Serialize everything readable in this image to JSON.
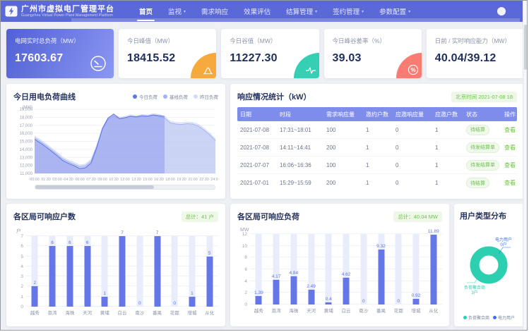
{
  "app": {
    "title": "广州市虚拟电厂管理平台",
    "subtitle": "Guangzhou Virtual Power Plant Management Platform"
  },
  "nav": {
    "items": [
      {
        "label": "首页",
        "active": true,
        "caret": false
      },
      {
        "label": "监视",
        "active": false,
        "caret": true
      },
      {
        "label": "需求响应",
        "active": false,
        "caret": false
      },
      {
        "label": "效果评估",
        "active": false,
        "caret": false
      },
      {
        "label": "结算管理",
        "active": false,
        "caret": true
      },
      {
        "label": "签约管理",
        "active": false,
        "caret": true
      },
      {
        "label": "参数配置",
        "active": false,
        "caret": true
      }
    ]
  },
  "kpis": [
    {
      "label": "电网实时总负荷（MW）",
      "value": "17603.67",
      "icon": "gauge-icon",
      "accent": "#5b69d8"
    },
    {
      "label": "今日峰值（MW）",
      "value": "18415.52",
      "icon": "peak-curve-icon",
      "accent": "#f7a93b"
    },
    {
      "label": "今日谷值（MW）",
      "value": "11227.30",
      "icon": "pulse-icon",
      "accent": "#35cfb4"
    },
    {
      "label": "今日峰谷差率（%）",
      "value": "39.03",
      "icon": "percent-icon",
      "accent": "#f87c72"
    },
    {
      "label": "日前 / 实时响应能力（MW）",
      "value": "40.04/39.12",
      "icon": null,
      "accent": null
    }
  ],
  "response_table": {
    "title": "响应情况统计（kW）",
    "timestamp": "北京时间 2021-07-08 18",
    "columns": [
      "日期",
      "时段",
      "需求响应量",
      "邀约户数",
      "应邀响应量",
      "应邀户数",
      "状态",
      "操作"
    ],
    "rows": [
      {
        "cells": [
          "2021-07-08",
          "17:31~18:01",
          "100",
          "1",
          "0",
          "1"
        ],
        "status": "待结算",
        "action": "查看"
      },
      {
        "cells": [
          "2021-07-08",
          "14:11~14:41",
          "200",
          "1",
          "0",
          "1"
        ],
        "status": "待发结算单",
        "action": "查看"
      },
      {
        "cells": [
          "2021-07-07",
          "16:06~16:36",
          "100",
          "1",
          "0",
          "1"
        ],
        "status": "待发结算单",
        "action": "查看"
      },
      {
        "cells": [
          "2021-07-01",
          "15:29~15:59",
          "200",
          "1",
          "0",
          "1"
        ],
        "status": "待结算",
        "action": "查看"
      }
    ]
  },
  "chart_data": [
    {
      "type": "area",
      "title": "今日用电负荷曲线",
      "unit": "(MW)",
      "ylim": [
        11000,
        19000
      ],
      "ytick_step": 1000,
      "xrange": [
        0,
        24
      ],
      "xticks": [
        "00:00",
        "01:30",
        "03:00",
        "04:30",
        "06:00",
        "07:30",
        "09:00",
        "10:30",
        "12:00",
        "13:30",
        "15:00",
        "16:30",
        "18:00",
        "19:30",
        "21:00",
        "22:30",
        "24:00"
      ],
      "legend_position": "top-right",
      "grid": true,
      "datazoom": {
        "start": 0,
        "end": 66
      },
      "series": [
        {
          "name": "今日负荷",
          "color": "#5f74e3",
          "fill": "rgba(128,144,238,0.45)",
          "x": [
            0,
            0.75,
            1.5,
            2.25,
            3,
            3.75,
            4.5,
            5.25,
            6,
            6.75,
            7.5,
            8.25,
            9,
            9.75,
            10.5,
            11.25,
            12,
            12.75,
            13.5,
            14.25,
            15,
            15.75,
            16.5,
            17.25
          ],
          "values": [
            15250,
            14800,
            14300,
            13750,
            13200,
            12600,
            12250,
            11950,
            11600,
            11700,
            12300,
            14200,
            16600,
            17900,
            18415,
            17850,
            17950,
            18150,
            18050,
            18200,
            18150,
            18300,
            18200,
            18100
          ]
        },
        {
          "name": "基线负荷",
          "color": "#a5b2f1",
          "fill": "rgba(165,178,241,0.40)",
          "x": [
            0,
            0.75,
            1.5,
            2.25,
            3,
            3.75,
            4.5,
            5.25,
            6,
            6.75,
            7.5,
            8.25,
            9,
            9.75,
            10.5,
            11.25,
            12,
            12.75,
            13.5,
            14.25,
            15,
            15.75,
            16.5,
            17.25,
            18,
            18.75,
            19.5,
            20.25,
            21,
            21.75,
            22.5,
            23.25,
            24
          ],
          "values": [
            15450,
            15000,
            14500,
            13950,
            13400,
            12800,
            12450,
            12150,
            11850,
            11950,
            12550,
            14350,
            16500,
            17750,
            18150,
            17800,
            17900,
            18100,
            18000,
            18150,
            18100,
            18250,
            18150,
            17900,
            17300,
            17150,
            17100,
            17200,
            17150,
            16900,
            16400,
            15800,
            15100
          ]
        },
        {
          "name": "昨日负荷",
          "color": "#d3dbf8",
          "fill": "rgba(211,219,248,0.55)",
          "x": [
            0,
            0.75,
            1.5,
            2.25,
            3,
            3.75,
            4.5,
            5.25,
            6,
            6.75,
            7.5,
            8.25,
            9,
            9.75,
            10.5,
            11.25,
            12,
            12.75,
            13.5,
            14.25,
            15,
            15.75,
            16.5,
            17.25,
            18,
            18.75,
            19.5,
            20.25,
            21,
            21.75,
            22.5,
            23.25,
            24
          ],
          "values": [
            15650,
            15200,
            14700,
            14150,
            13600,
            13000,
            12650,
            12350,
            12050,
            12150,
            12750,
            14550,
            16700,
            17950,
            18350,
            18000,
            18100,
            18300,
            18200,
            18350,
            18300,
            18450,
            18350,
            18100,
            17500,
            17350,
            17300,
            17400,
            17350,
            17100,
            16600,
            16000,
            15300
          ]
        }
      ]
    },
    {
      "type": "bar",
      "title": "各区局可响应户数",
      "total_badge": "总计：41 户",
      "unit": "户",
      "categories": [
        "越秀",
        "荔湾",
        "海珠",
        "天河",
        "黄埔",
        "白云",
        "南沙",
        "番禺",
        "花都",
        "增城",
        "从化"
      ],
      "values": [
        2,
        6,
        6,
        6,
        1,
        7,
        0,
        7,
        0,
        1,
        5
      ],
      "ylim": [
        0,
        7
      ],
      "ytick_step": 1,
      "grid": true
    },
    {
      "type": "bar",
      "title": "各区局可响应负荷",
      "total_badge": "总计：40.04 MW",
      "unit": "MW",
      "categories": [
        "越秀",
        "荔湾",
        "海珠",
        "天河",
        "黄埔",
        "白云",
        "南沙",
        "番禺",
        "花都",
        "增城",
        "从化"
      ],
      "values": [
        1.39,
        4.17,
        4.84,
        2.49,
        0.4,
        4.62,
        0,
        9.32,
        0,
        0.92,
        11.89
      ],
      "ylim": [
        0,
        12
      ],
      "ytick_step": 2,
      "grid": true
    },
    {
      "type": "pie",
      "title": "用户类型分布",
      "slices": [
        {
          "name": "负荷聚合商",
          "count_label": "3户",
          "value": 3,
          "color": "#2dcfb1"
        },
        {
          "name": "电力用户",
          "count_label": "0户",
          "value": 0,
          "color": "#3a6ff0"
        }
      ],
      "legend_position": "bottom"
    }
  ],
  "colors": {
    "header": "#5b69d8",
    "primary_card_gradient": [
      "#5160d5",
      "#8b97f2"
    ],
    "bar": "#6476e8",
    "bar_band": "#e9edfb",
    "success": "#67c23a",
    "table_header": "#7e8dec",
    "peak_accent": "#f7a93b",
    "valley_accent": "#35cfb4",
    "rate_accent": "#f87c72",
    "donut_teal": "#2dcfb1",
    "donut_blue": "#3a6ff0"
  }
}
